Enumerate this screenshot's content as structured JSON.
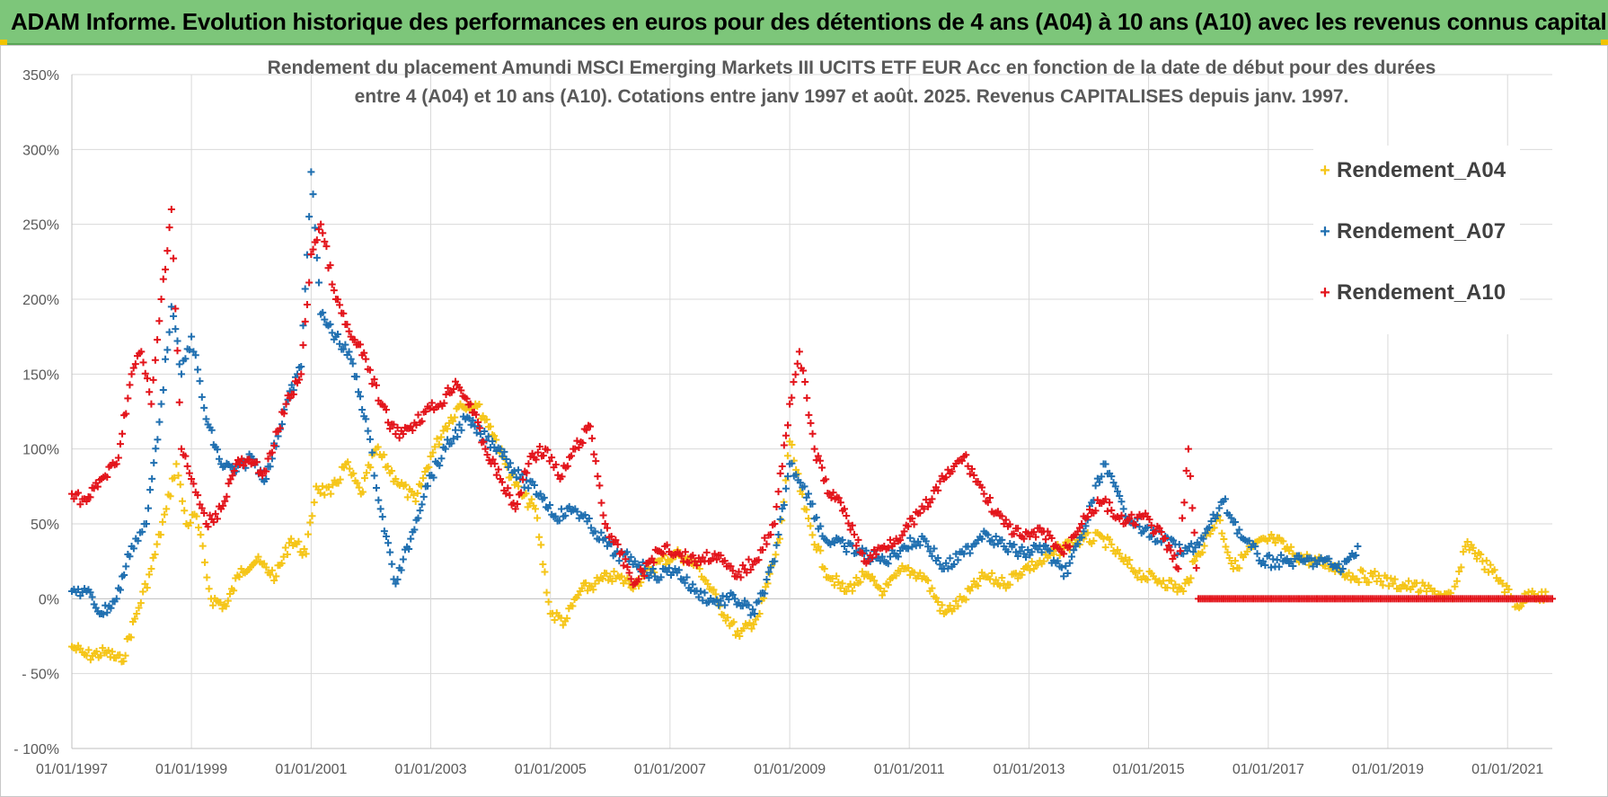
{
  "banner": {
    "title": "ADAM Informe. Evolution historique des performances en euros pour des détentions de 4 ans (A04) à 10 ans (A10) avec les revenus connus capitalisés"
  },
  "colors": {
    "banner_bg": "#7dc67a",
    "series_A04": "#f5c518",
    "series_A07": "#1f6fb0",
    "series_A10": "#e3141b",
    "grid": "#d9d9d9"
  },
  "chart_data": {
    "type": "scatter",
    "marker": "plus",
    "title_lines": [
      "Rendement du placement Amundi MSCI Emerging Markets III UCITS ETF EUR Acc en fonction de la date de début pour des durées",
      "entre 4 (A04) et 10 ans (A10).  Cotations entre janv 1997 et août. 2025. Revenus CAPITALISES depuis janv. 1997."
    ],
    "x_tick_labels": [
      "01/01/1997",
      "01/01/1999",
      "01/01/2001",
      "01/01/2003",
      "01/01/2005",
      "01/01/2007",
      "01/01/2009",
      "01/01/2011",
      "01/01/2013",
      "01/01/2015",
      "01/01/2017",
      "01/01/2019",
      "01/01/2021"
    ],
    "y_tick_labels": [
      "350%",
      "300%",
      "250%",
      "200%",
      "150%",
      "100%",
      "50%",
      "0%",
      "- 50%",
      "- 100%"
    ],
    "xlim": [
      "1997-01-01",
      "2021-10-01"
    ],
    "ylim": [
      -100,
      350
    ],
    "y_unit": "%",
    "grid": true,
    "legend_position": "top-right",
    "series": [
      {
        "name": "Rendement_A04",
        "color": "#f5c518",
        "points": [
          [
            "1997-01-01",
            -32
          ],
          [
            "1997-04-01",
            -38
          ],
          [
            "1997-08-01",
            -36
          ],
          [
            "1997-11-01",
            -42
          ],
          [
            "1998-02-01",
            -10
          ],
          [
            "1998-05-01",
            20
          ],
          [
            "1998-08-01",
            60
          ],
          [
            "1998-10-01",
            90
          ],
          [
            "1998-12-01",
            50
          ],
          [
            "1999-02-01",
            55
          ],
          [
            "1999-05-01",
            0
          ],
          [
            "1999-08-01",
            -5
          ],
          [
            "1999-11-01",
            20
          ],
          [
            "2000-02-01",
            25
          ],
          [
            "2000-06-01",
            15
          ],
          [
            "2000-09-01",
            40
          ],
          [
            "2000-12-01",
            30
          ],
          [
            "2001-02-01",
            75
          ],
          [
            "2001-05-01",
            70
          ],
          [
            "2001-08-01",
            90
          ],
          [
            "2001-11-01",
            70
          ],
          [
            "2002-02-01",
            100
          ],
          [
            "2002-06-01",
            80
          ],
          [
            "2002-10-01",
            65
          ],
          [
            "2003-01-01",
            95
          ],
          [
            "2003-04-01",
            115
          ],
          [
            "2003-07-01",
            130
          ],
          [
            "2003-10-01",
            130
          ],
          [
            "2004-01-01",
            115
          ],
          [
            "2004-04-01",
            90
          ],
          [
            "2004-07-01",
            70
          ],
          [
            "2004-10-01",
            60
          ],
          [
            "2005-01-01",
            -10
          ],
          [
            "2005-04-01",
            -15
          ],
          [
            "2005-07-01",
            5
          ],
          [
            "2005-10-01",
            10
          ],
          [
            "2006-01-01",
            15
          ],
          [
            "2006-06-01",
            10
          ],
          [
            "2006-11-01",
            25
          ],
          [
            "2007-03-01",
            30
          ],
          [
            "2007-07-01",
            20
          ],
          [
            "2007-11-01",
            -5
          ],
          [
            "2008-03-01",
            -25
          ],
          [
            "2008-07-01",
            -10
          ],
          [
            "2008-11-01",
            40
          ],
          [
            "2009-01-01",
            105
          ],
          [
            "2009-04-01",
            60
          ],
          [
            "2009-08-01",
            20
          ],
          [
            "2009-12-01",
            5
          ],
          [
            "2010-04-01",
            15
          ],
          [
            "2010-08-01",
            5
          ],
          [
            "2010-12-01",
            20
          ],
          [
            "2011-04-01",
            15
          ],
          [
            "2011-08-01",
            -10
          ],
          [
            "2011-12-01",
            0
          ],
          [
            "2012-04-01",
            15
          ],
          [
            "2012-08-01",
            10
          ],
          [
            "2012-12-01",
            20
          ],
          [
            "2013-04-01",
            25
          ],
          [
            "2013-08-01",
            35
          ],
          [
            "2013-12-01",
            40
          ],
          [
            "2014-04-01",
            40
          ],
          [
            "2014-08-01",
            25
          ],
          [
            "2014-12-01",
            15
          ],
          [
            "2015-04-01",
            12
          ],
          [
            "2015-08-01",
            5
          ],
          [
            "2015-11-01",
            30
          ],
          [
            "2016-03-01",
            55
          ],
          [
            "2016-06-01",
            20
          ],
          [
            "2016-10-01",
            35
          ],
          [
            "2017-02-01",
            40
          ],
          [
            "2017-06-01",
            30
          ],
          [
            "2017-10-01",
            25
          ],
          [
            "2018-02-01",
            22
          ],
          [
            "2018-06-01",
            15
          ],
          [
            "2018-10-01",
            15
          ],
          [
            "2019-02-01",
            10
          ],
          [
            "2019-06-01",
            8
          ],
          [
            "2019-10-01",
            5
          ],
          [
            "2020-02-01",
            0
          ],
          [
            "2020-05-01",
            38
          ],
          [
            "2020-08-01",
            25
          ],
          [
            "2020-12-01",
            10
          ],
          [
            "2021-03-01",
            -5
          ],
          [
            "2021-06-01",
            5
          ],
          [
            "2021-09-01",
            0
          ]
        ]
      },
      {
        "name": "Rendement_A07",
        "color": "#1f6fb0",
        "points": [
          [
            "1997-01-01",
            5
          ],
          [
            "1997-04-01",
            5
          ],
          [
            "1997-07-01",
            -10
          ],
          [
            "1997-10-01",
            0
          ],
          [
            "1998-01-01",
            35
          ],
          [
            "1998-04-01",
            50
          ],
          [
            "1998-07-01",
            130
          ],
          [
            "1998-09-01",
            195
          ],
          [
            "1998-11-01",
            150
          ],
          [
            "1999-01-01",
            175
          ],
          [
            "1999-04-01",
            120
          ],
          [
            "1999-07-01",
            90
          ],
          [
            "1999-10-01",
            85
          ],
          [
            "2000-01-01",
            95
          ],
          [
            "2000-04-01",
            80
          ],
          [
            "2000-08-01",
            130
          ],
          [
            "2000-11-01",
            155
          ],
          [
            "2001-01-01",
            285
          ],
          [
            "2001-03-01",
            190
          ],
          [
            "2001-06-01",
            175
          ],
          [
            "2001-09-01",
            160
          ],
          [
            "2001-12-01",
            120
          ],
          [
            "2002-03-01",
            60
          ],
          [
            "2002-06-01",
            10
          ],
          [
            "2002-09-01",
            40
          ],
          [
            "2002-12-01",
            75
          ],
          [
            "2003-04-01",
            100
          ],
          [
            "2003-08-01",
            120
          ],
          [
            "2003-11-01",
            110
          ],
          [
            "2004-03-01",
            100
          ],
          [
            "2004-07-01",
            80
          ],
          [
            "2004-11-01",
            70
          ],
          [
            "2005-02-01",
            55
          ],
          [
            "2005-06-01",
            60
          ],
          [
            "2005-10-01",
            45
          ],
          [
            "2006-02-01",
            30
          ],
          [
            "2006-06-01",
            25
          ],
          [
            "2006-10-01",
            15
          ],
          [
            "2007-02-01",
            20
          ],
          [
            "2007-06-01",
            5
          ],
          [
            "2007-10-01",
            -2
          ],
          [
            "2008-02-01",
            0
          ],
          [
            "2008-06-01",
            -10
          ],
          [
            "2008-10-01",
            25
          ],
          [
            "2009-01-01",
            90
          ],
          [
            "2009-04-01",
            75
          ],
          [
            "2009-08-01",
            40
          ],
          [
            "2009-12-01",
            35
          ],
          [
            "2010-04-01",
            30
          ],
          [
            "2010-08-01",
            25
          ],
          [
            "2010-12-01",
            35
          ],
          [
            "2011-04-01",
            40
          ],
          [
            "2011-08-01",
            20
          ],
          [
            "2011-12-01",
            30
          ],
          [
            "2012-04-01",
            45
          ],
          [
            "2012-08-01",
            35
          ],
          [
            "2012-12-01",
            30
          ],
          [
            "2013-04-01",
            35
          ],
          [
            "2013-08-01",
            15
          ],
          [
            "2013-12-01",
            45
          ],
          [
            "2014-04-01",
            90
          ],
          [
            "2014-08-01",
            60
          ],
          [
            "2014-12-01",
            45
          ],
          [
            "2015-04-01",
            40
          ],
          [
            "2015-08-01",
            30
          ],
          [
            "2015-12-01",
            40
          ],
          [
            "2016-04-01",
            65
          ],
          [
            "2016-08-01",
            40
          ],
          [
            "2016-12-01",
            25
          ],
          [
            "2017-04-01",
            25
          ],
          [
            "2017-08-01",
            25
          ],
          [
            "2017-12-01",
            25
          ],
          [
            "2018-04-01",
            20
          ],
          [
            "2018-07-01",
            35
          ]
        ]
      },
      {
        "name": "Rendement_A10",
        "color": "#e3141b",
        "points": [
          [
            "1997-01-01",
            70
          ],
          [
            "1997-04-01",
            65
          ],
          [
            "1997-07-01",
            80
          ],
          [
            "1997-10-01",
            90
          ],
          [
            "1998-01-01",
            150
          ],
          [
            "1998-03-01",
            165
          ],
          [
            "1998-05-01",
            130
          ],
          [
            "1998-07-01",
            200
          ],
          [
            "1998-09-01",
            260
          ],
          [
            "1998-11-01",
            100
          ],
          [
            "1999-01-01",
            80
          ],
          [
            "1999-04-01",
            50
          ],
          [
            "1999-07-01",
            60
          ],
          [
            "1999-10-01",
            90
          ],
          [
            "2000-01-01",
            90
          ],
          [
            "2000-04-01",
            85
          ],
          [
            "2000-08-01",
            130
          ],
          [
            "2000-11-01",
            150
          ],
          [
            "2001-01-01",
            230
          ],
          [
            "2001-03-01",
            250
          ],
          [
            "2001-06-01",
            200
          ],
          [
            "2001-09-01",
            175
          ],
          [
            "2001-12-01",
            160
          ],
          [
            "2002-03-01",
            130
          ],
          [
            "2002-06-01",
            110
          ],
          [
            "2002-09-01",
            115
          ],
          [
            "2002-12-01",
            125
          ],
          [
            "2003-03-01",
            130
          ],
          [
            "2003-06-01",
            145
          ],
          [
            "2003-09-01",
            130
          ],
          [
            "2003-12-01",
            100
          ],
          [
            "2004-03-01",
            80
          ],
          [
            "2004-06-01",
            60
          ],
          [
            "2004-09-01",
            95
          ],
          [
            "2004-12-01",
            100
          ],
          [
            "2005-03-01",
            80
          ],
          [
            "2005-06-01",
            100
          ],
          [
            "2005-09-01",
            115
          ],
          [
            "2005-12-01",
            50
          ],
          [
            "2006-03-01",
            30
          ],
          [
            "2006-06-01",
            10
          ],
          [
            "2006-09-01",
            25
          ],
          [
            "2006-12-01",
            35
          ],
          [
            "2007-03-01",
            30
          ],
          [
            "2007-06-01",
            25
          ],
          [
            "2007-10-01",
            30
          ],
          [
            "2008-02-01",
            15
          ],
          [
            "2008-06-01",
            25
          ],
          [
            "2008-10-01",
            50
          ],
          [
            "2009-01-01",
            130
          ],
          [
            "2009-03-01",
            165
          ],
          [
            "2009-06-01",
            100
          ],
          [
            "2009-09-01",
            70
          ],
          [
            "2009-12-01",
            60
          ],
          [
            "2010-04-01",
            25
          ],
          [
            "2010-08-01",
            35
          ],
          [
            "2010-12-01",
            45
          ],
          [
            "2011-04-01",
            60
          ],
          [
            "2011-08-01",
            80
          ],
          [
            "2011-12-01",
            95
          ],
          [
            "2012-04-01",
            70
          ],
          [
            "2012-08-01",
            50
          ],
          [
            "2012-12-01",
            40
          ],
          [
            "2013-04-01",
            45
          ],
          [
            "2013-08-01",
            30
          ],
          [
            "2013-12-01",
            55
          ],
          [
            "2014-04-01",
            65
          ],
          [
            "2014-08-01",
            50
          ],
          [
            "2014-12-01",
            55
          ],
          [
            "2015-04-01",
            40
          ],
          [
            "2015-07-01",
            20
          ],
          [
            "2015-09-01",
            100
          ],
          [
            "2015-11-01",
            0
          ],
          [
            "2016-06-01",
            0
          ],
          [
            "2017-06-01",
            0
          ],
          [
            "2018-06-01",
            0
          ],
          [
            "2019-06-01",
            0
          ],
          [
            "2020-06-01",
            0
          ],
          [
            "2021-06-01",
            0
          ],
          [
            "2021-10-01",
            0
          ]
        ]
      }
    ]
  }
}
